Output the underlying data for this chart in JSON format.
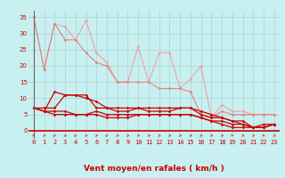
{
  "background_color": "#c8f0f0",
  "grid_color": "#b0d8d8",
  "x_label": "Vent moyen/en rafales ( km/h )",
  "x_ticks": [
    0,
    1,
    2,
    3,
    4,
    5,
    6,
    7,
    8,
    9,
    10,
    11,
    12,
    13,
    14,
    15,
    16,
    17,
    18,
    19,
    20,
    21,
    22,
    23
  ],
  "y_ticks": [
    0,
    5,
    10,
    15,
    20,
    25,
    30,
    35
  ],
  "ylim": [
    -2.5,
    37
  ],
  "xlim": [
    -0.5,
    23.5
  ],
  "lines": [
    {
      "x": [
        0,
        1,
        2,
        3,
        4,
        5,
        6,
        7,
        8,
        9,
        10,
        11,
        12,
        13,
        14,
        15,
        16,
        17,
        18,
        19,
        20,
        21,
        22,
        23
      ],
      "y": [
        35,
        19,
        33,
        32,
        28,
        34,
        24,
        21,
        15,
        15,
        26,
        15,
        24,
        24,
        13,
        16,
        20,
        4,
        8,
        6,
        6,
        5,
        5,
        5
      ],
      "color": "#f0a0a0",
      "lw": 0.8,
      "marker": "D",
      "ms": 1.8
    },
    {
      "x": [
        0,
        1,
        2,
        3,
        4,
        5,
        6,
        7,
        8,
        9,
        10,
        11,
        12,
        13,
        14,
        15,
        16,
        17,
        18,
        19,
        20,
        21,
        22,
        23
      ],
      "y": [
        35,
        19,
        33,
        28,
        28,
        24,
        21,
        20,
        15,
        15,
        15,
        15,
        13,
        13,
        13,
        12,
        5,
        4,
        6,
        5,
        5,
        5,
        5,
        5
      ],
      "color": "#e88080",
      "lw": 0.8,
      "marker": "D",
      "ms": 1.8
    },
    {
      "x": [
        0,
        1,
        2,
        3,
        4,
        5,
        6,
        7,
        8,
        9,
        10,
        11,
        12,
        13,
        14,
        15,
        16,
        17,
        18,
        19,
        20,
        21,
        22,
        23
      ],
      "y": [
        7,
        7,
        7,
        11,
        11,
        11,
        7,
        7,
        7,
        7,
        7,
        7,
        7,
        7,
        7,
        7,
        6,
        5,
        4,
        3,
        2,
        1,
        2,
        2
      ],
      "color": "#cc0000",
      "lw": 0.9,
      "marker": "D",
      "ms": 1.8
    },
    {
      "x": [
        0,
        1,
        2,
        3,
        4,
        5,
        6,
        7,
        8,
        9,
        10,
        11,
        12,
        13,
        14,
        15,
        16,
        17,
        18,
        19,
        20,
        21,
        22,
        23
      ],
      "y": [
        7,
        6,
        12,
        11,
        11,
        10,
        9,
        7,
        6,
        6,
        7,
        6,
        6,
        6,
        7,
        7,
        5,
        4,
        4,
        3,
        3,
        1,
        1,
        2
      ],
      "color": "#cc0000",
      "lw": 0.9,
      "marker": "D",
      "ms": 1.8
    },
    {
      "x": [
        0,
        1,
        2,
        3,
        4,
        5,
        6,
        7,
        8,
        9,
        10,
        11,
        12,
        13,
        14,
        15,
        16,
        17,
        18,
        19,
        20,
        21,
        22,
        23
      ],
      "y": [
        7,
        6,
        6,
        6,
        5,
        5,
        6,
        5,
        5,
        5,
        5,
        5,
        5,
        5,
        5,
        5,
        4,
        3,
        3,
        2,
        2,
        1,
        1,
        2
      ],
      "color": "#cc0000",
      "lw": 0.9,
      "marker": "D",
      "ms": 1.8
    },
    {
      "x": [
        0,
        1,
        2,
        3,
        4,
        5,
        6,
        7,
        8,
        9,
        10,
        11,
        12,
        13,
        14,
        15,
        16,
        17,
        18,
        19,
        20,
        21,
        22,
        23
      ],
      "y": [
        7,
        6,
        5,
        5,
        5,
        5,
        5,
        4,
        4,
        4,
        5,
        5,
        5,
        5,
        5,
        5,
        4,
        3,
        2,
        1,
        1,
        1,
        1,
        2
      ],
      "color": "#cc0000",
      "lw": 0.9,
      "marker": "D",
      "ms": 1.8
    }
  ],
  "arrow_color": "#cc3333",
  "tick_fontsize": 5.0,
  "xlabel_fontsize": 6.5,
  "xlabel_color": "#cc0000"
}
